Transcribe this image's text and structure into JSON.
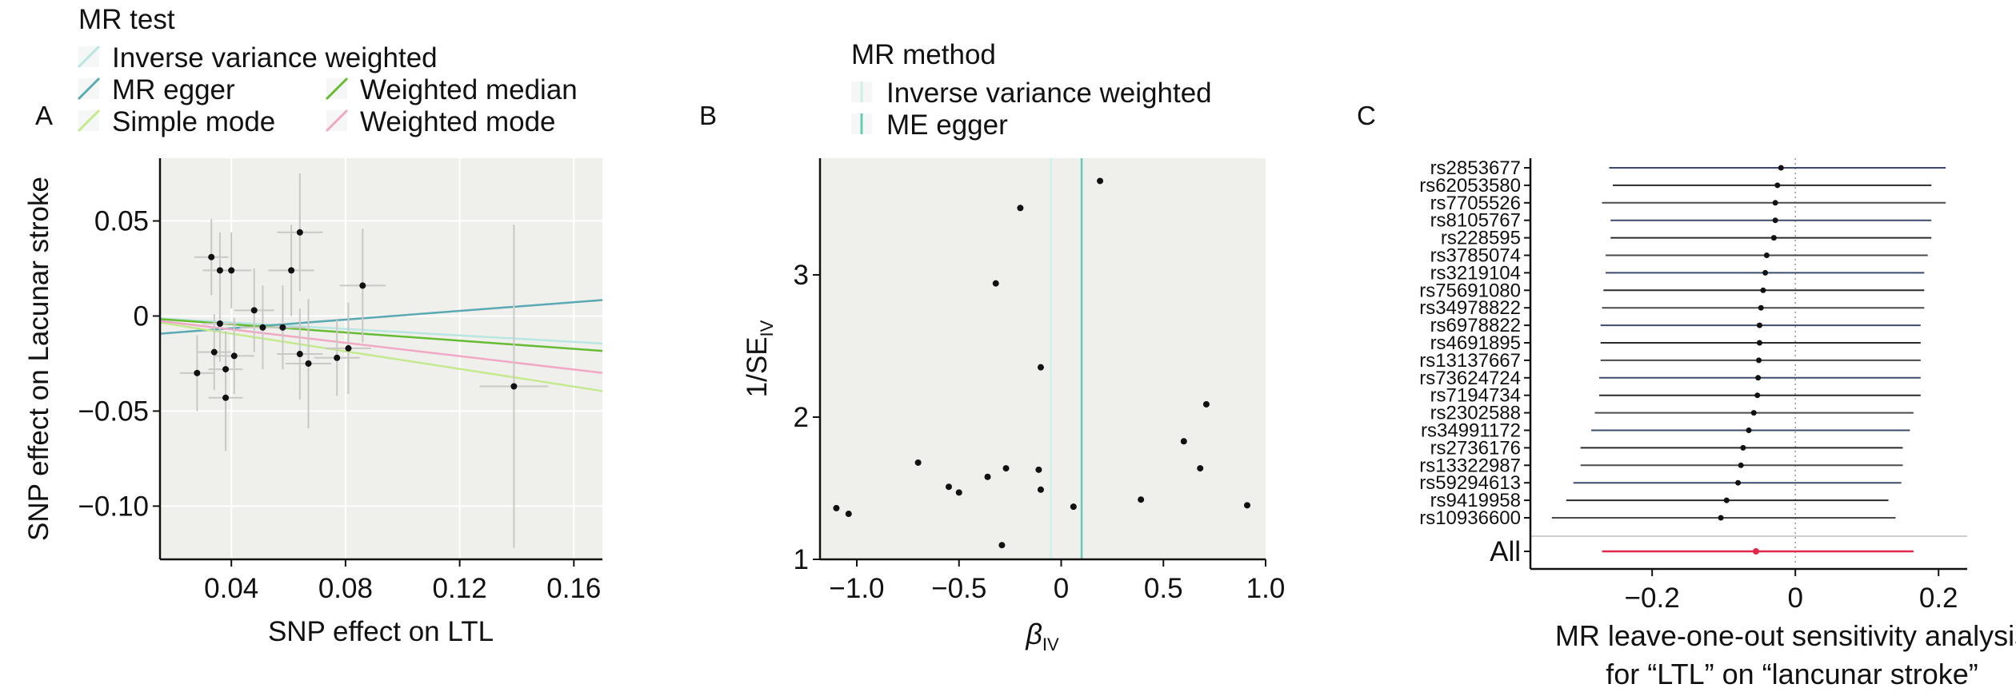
{
  "panel_letters": {
    "a": "A",
    "b": "B",
    "c": "C"
  },
  "legend_a": {
    "title": "MR test",
    "items": [
      {
        "label": "Inverse variance weighted",
        "color": "#b9e6e1"
      },
      {
        "label": "MR egger",
        "color": "#5aa9b3"
      },
      {
        "label": "Weighted median",
        "color": "#66bb33"
      },
      {
        "label": "Simple mode",
        "color": "#c4ea8f"
      },
      {
        "label": "Weighted mode",
        "color": "#f0a8c6"
      }
    ]
  },
  "legend_b": {
    "title": "MR method",
    "items": [
      {
        "label": "Inverse variance weighted",
        "color": "#cfeee8"
      },
      {
        "label": "ME egger",
        "color": "#6cc7b6"
      }
    ]
  },
  "colors": {
    "panel_bg": "#efefeb",
    "grid": "#ffffff",
    "point": "#111111",
    "errorbar": "#c8c8c4",
    "all_line": "#e0284a"
  },
  "chart_data": [
    {
      "type": "scatter",
      "panel": "A",
      "xlabel": "SNP effect on LTL",
      "ylabel": "SNP effect on Lacunar stroke",
      "xlim": [
        0.015,
        0.17
      ],
      "ylim": [
        -0.128,
        0.083
      ],
      "xticks": [
        0.04,
        0.08,
        0.12,
        0.16
      ],
      "xtick_labels": [
        "0.04",
        "0.08",
        "0.12",
        "0.16"
      ],
      "yticks": [
        0.05,
        0,
        -0.05,
        -0.1
      ],
      "ytick_labels": [
        "0.05",
        "0",
        "−0.05",
        "−0.10"
      ],
      "grid": true,
      "points": [
        {
          "x": 0.028,
          "y": -0.03,
          "xerr": 0.006,
          "yerr": 0.02
        },
        {
          "x": 0.033,
          "y": 0.031,
          "xerr": 0.006,
          "yerr": 0.02
        },
        {
          "x": 0.034,
          "y": -0.019,
          "xerr": 0.006,
          "yerr": 0.02
        },
        {
          "x": 0.036,
          "y": -0.004,
          "xerr": 0.006,
          "yerr": 0.02
        },
        {
          "x": 0.036,
          "y": 0.024,
          "xerr": 0.006,
          "yerr": 0.02
        },
        {
          "x": 0.038,
          "y": -0.028,
          "xerr": 0.006,
          "yerr": 0.02
        },
        {
          "x": 0.038,
          "y": -0.043,
          "xerr": 0.006,
          "yerr": 0.028
        },
        {
          "x": 0.04,
          "y": 0.024,
          "xerr": 0.007,
          "yerr": 0.02
        },
        {
          "x": 0.041,
          "y": -0.021,
          "xerr": 0.007,
          "yerr": 0.02
        },
        {
          "x": 0.048,
          "y": 0.003,
          "xerr": 0.007,
          "yerr": 0.022
        },
        {
          "x": 0.051,
          "y": -0.006,
          "xerr": 0.008,
          "yerr": 0.022
        },
        {
          "x": 0.058,
          "y": -0.006,
          "xerr": 0.008,
          "yerr": 0.022
        },
        {
          "x": 0.061,
          "y": 0.024,
          "xerr": 0.008,
          "yerr": 0.024
        },
        {
          "x": 0.064,
          "y": 0.044,
          "xerr": 0.008,
          "yerr": 0.031
        },
        {
          "x": 0.064,
          "y": -0.02,
          "xerr": 0.008,
          "yerr": 0.024
        },
        {
          "x": 0.067,
          "y": -0.025,
          "xerr": 0.008,
          "yerr": 0.034
        },
        {
          "x": 0.077,
          "y": -0.022,
          "xerr": 0.008,
          "yerr": 0.02
        },
        {
          "x": 0.081,
          "y": -0.017,
          "xerr": 0.008,
          "yerr": 0.024
        },
        {
          "x": 0.086,
          "y": 0.016,
          "xerr": 0.008,
          "yerr": 0.03
        },
        {
          "x": 0.139,
          "y": -0.037,
          "xerr": 0.012,
          "yerr": 0.085
        }
      ],
      "fit_lines": [
        {
          "method": "Inverse variance weighted",
          "intercept": 0,
          "slope": -0.085
        },
        {
          "method": "MR egger",
          "intercept": -0.011,
          "slope": 0.114
        },
        {
          "method": "Weighted median",
          "intercept": 0,
          "slope": -0.108
        },
        {
          "method": "Simple mode",
          "intercept": 0,
          "slope": -0.232
        },
        {
          "method": "Weighted mode",
          "intercept": 0,
          "slope": -0.176
        }
      ]
    },
    {
      "type": "scatter",
      "panel": "B",
      "xlabel": "βIV",
      "ylabel": "1/SEIV",
      "xlim": [
        -1.18,
        1.0
      ],
      "ylim": [
        1.0,
        3.82
      ],
      "xticks": [
        -1.0,
        -0.5,
        0,
        0.5,
        1.0
      ],
      "xtick_labels": [
        "−1.0",
        "−0.5",
        "0",
        "0.5",
        "1.0"
      ],
      "yticks": [
        1,
        2,
        3
      ],
      "ytick_labels": [
        "1",
        "2",
        "3"
      ],
      "grid": false,
      "points": [
        {
          "x": -1.1,
          "y": 1.36
        },
        {
          "x": -1.04,
          "y": 1.32
        },
        {
          "x": -0.7,
          "y": 1.68
        },
        {
          "x": -0.55,
          "y": 1.51
        },
        {
          "x": -0.5,
          "y": 1.47
        },
        {
          "x": -0.36,
          "y": 1.58
        },
        {
          "x": -0.32,
          "y": 2.94
        },
        {
          "x": -0.29,
          "y": 1.1
        },
        {
          "x": -0.27,
          "y": 1.64
        },
        {
          "x": -0.2,
          "y": 3.47
        },
        {
          "x": -0.11,
          "y": 1.63
        },
        {
          "x": -0.1,
          "y": 1.49
        },
        {
          "x": -0.1,
          "y": 2.35
        },
        {
          "x": 0.06,
          "y": 1.37
        },
        {
          "x": 0.19,
          "y": 3.66
        },
        {
          "x": 0.39,
          "y": 1.42
        },
        {
          "x": 0.6,
          "y": 1.83
        },
        {
          "x": 0.68,
          "y": 1.64
        },
        {
          "x": 0.71,
          "y": 2.09
        },
        {
          "x": 0.91,
          "y": 1.38
        }
      ],
      "vlines": [
        {
          "method": "Inverse variance weighted",
          "x": -0.05
        },
        {
          "method": "ME egger",
          "x": 0.1
        }
      ]
    },
    {
      "type": "forest",
      "panel": "C",
      "xlabel_line1": "MR leave-one-out sensitivity analysis",
      "xlabel_line2": "for “LTL” on “lancunar stroke”",
      "xlim": [
        -0.37,
        0.24
      ],
      "xticks": [
        -0.2,
        0,
        0.2
      ],
      "xtick_labels": [
        "−0.2",
        "0",
        "0.2"
      ],
      "rows": [
        {
          "snp": "rs2853677",
          "est": -0.02,
          "lo": -0.26,
          "hi": 0.21
        },
        {
          "snp": "rs62053580",
          "est": -0.025,
          "lo": -0.255,
          "hi": 0.19
        },
        {
          "snp": "rs7705526",
          "est": -0.028,
          "lo": -0.27,
          "hi": 0.21
        },
        {
          "snp": "rs8105767",
          "est": -0.028,
          "lo": -0.258,
          "hi": 0.19
        },
        {
          "snp": "rs228595",
          "est": -0.03,
          "lo": -0.258,
          "hi": 0.19
        },
        {
          "snp": "rs3785074",
          "est": -0.04,
          "lo": -0.265,
          "hi": 0.185
        },
        {
          "snp": "rs3219104",
          "est": -0.042,
          "lo": -0.265,
          "hi": 0.18
        },
        {
          "snp": "rs75691080",
          "est": -0.045,
          "lo": -0.268,
          "hi": 0.18
        },
        {
          "snp": "rs34978822",
          "est": -0.048,
          "lo": -0.27,
          "hi": 0.18
        },
        {
          "snp": "rs6978822",
          "est": -0.05,
          "lo": -0.272,
          "hi": 0.175
        },
        {
          "snp": "rs4691895",
          "est": -0.05,
          "lo": -0.272,
          "hi": 0.175
        },
        {
          "snp": "rs13137667",
          "est": -0.051,
          "lo": -0.272,
          "hi": 0.175
        },
        {
          "snp": "rs73624724",
          "est": -0.052,
          "lo": -0.274,
          "hi": 0.175
        },
        {
          "snp": "rs7194734",
          "est": -0.053,
          "lo": -0.274,
          "hi": 0.175
        },
        {
          "snp": "rs2302588",
          "est": -0.058,
          "lo": -0.28,
          "hi": 0.165
        },
        {
          "snp": "rs34991172",
          "est": -0.065,
          "lo": -0.285,
          "hi": 0.16
        },
        {
          "snp": "rs2736176",
          "est": -0.073,
          "lo": -0.3,
          "hi": 0.15
        },
        {
          "snp": "rs13322987",
          "est": -0.076,
          "lo": -0.3,
          "hi": 0.15
        },
        {
          "snp": "rs59294613",
          "est": -0.08,
          "lo": -0.31,
          "hi": 0.148
        },
        {
          "snp": "rs9419958",
          "est": -0.096,
          "lo": -0.32,
          "hi": 0.13
        },
        {
          "snp": "rs10936600",
          "est": -0.104,
          "lo": -0.34,
          "hi": 0.14
        }
      ],
      "all_row": {
        "label": "All",
        "est": -0.055,
        "lo": -0.27,
        "hi": 0.165
      }
    }
  ]
}
